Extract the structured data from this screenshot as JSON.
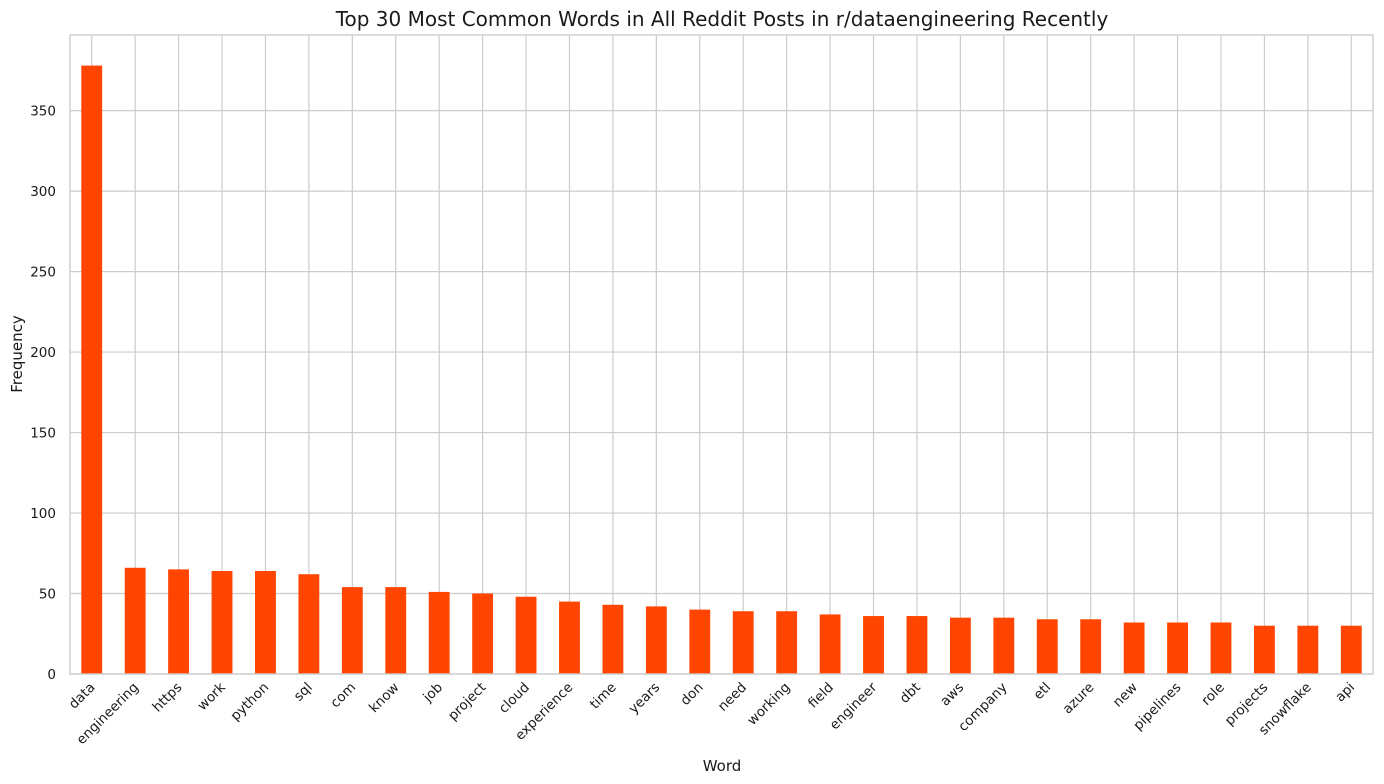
{
  "chart_data": {
    "type": "bar",
    "title": "Top 30 Most Common Words in All Reddit Posts in r/dataengineering Recently",
    "xlabel": "Word",
    "ylabel": "Frequency",
    "categories": [
      "data",
      "engineering",
      "https",
      "work",
      "python",
      "sql",
      "com",
      "know",
      "job",
      "project",
      "cloud",
      "experience",
      "time",
      "years",
      "don",
      "need",
      "working",
      "field",
      "engineer",
      "dbt",
      "aws",
      "company",
      "etl",
      "azure",
      "new",
      "pipelines",
      "role",
      "projects",
      "snowflake",
      "api"
    ],
    "values": [
      378,
      66,
      65,
      64,
      64,
      62,
      54,
      54,
      51,
      50,
      48,
      45,
      43,
      42,
      40,
      39,
      39,
      37,
      36,
      36,
      35,
      35,
      34,
      34,
      32,
      32,
      32,
      30,
      30,
      30
    ],
    "ylim": [
      0,
      397
    ],
    "yticks": [
      0,
      50,
      100,
      150,
      200,
      250,
      300,
      350
    ],
    "grid": true,
    "bar_color": "#ff4500",
    "legend": "none"
  }
}
